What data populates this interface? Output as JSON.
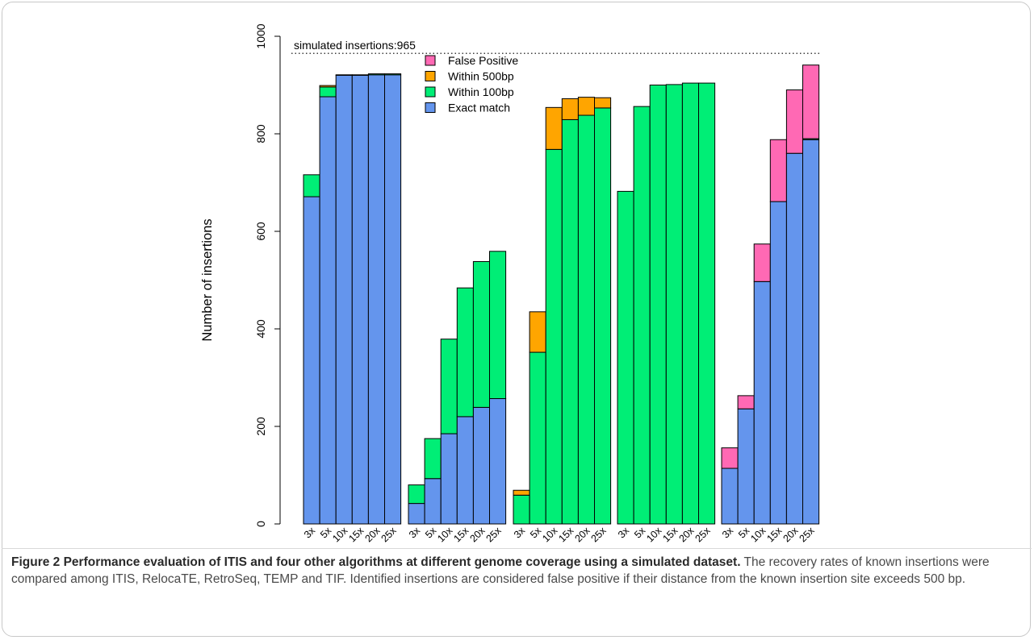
{
  "figure": {
    "caption_title": "Figure 2 Performance evaluation of ITIS and four other algorithms at different genome coverage using a simulated dataset.",
    "caption_body": "The recovery rates of known insertions were compared among ITIS, RelocaTE, RetroSeq, TEMP and TIF. Identified insertions are considered false positive if their distance from the known insertion site exceeds 500 bp."
  },
  "chart_data": {
    "type": "bar",
    "stacked": true,
    "ylabel": "Number of insertions",
    "ylim": [
      0,
      1000
    ],
    "yticks": [
      0,
      200,
      400,
      600,
      800,
      1000
    ],
    "reference_line": {
      "value": 965,
      "label": "simulated insertions:965",
      "style": "dotted"
    },
    "groups": [
      "ITIS",
      "RelocaTE",
      "RetroSeq",
      "TEMP",
      "TIF"
    ],
    "coverages": [
      "3x",
      "5x",
      "10x",
      "15x",
      "20x",
      "25x"
    ],
    "series": [
      {
        "name": "Exact match",
        "color": "#6495ED",
        "values": [
          [
            671,
            876,
            920,
            920,
            921,
            921
          ],
          [
            42,
            93,
            185,
            220,
            239,
            257
          ],
          [
            0,
            0,
            0,
            0,
            0,
            0
          ],
          [
            0,
            0,
            0,
            0,
            0,
            0
          ],
          [
            114,
            236,
            497,
            661,
            760,
            788
          ]
        ]
      },
      {
        "name": "Within 100bp",
        "color": "#00EE76",
        "values": [
          [
            45,
            20,
            1,
            1,
            2,
            2
          ],
          [
            38,
            82,
            194,
            264,
            299,
            302
          ],
          [
            59,
            352,
            768,
            829,
            838,
            853
          ],
          [
            682,
            856,
            900,
            901,
            904,
            904
          ],
          [
            0,
            0,
            0,
            0,
            0,
            2
          ]
        ]
      },
      {
        "name": "Within 500bp",
        "color": "#FFA500",
        "values": [
          [
            0,
            3,
            0,
            0,
            0,
            0
          ],
          [
            0,
            0,
            0,
            0,
            0,
            0
          ],
          [
            10,
            83,
            86,
            43,
            37,
            21
          ],
          [
            0,
            0,
            0,
            0,
            0,
            0
          ],
          [
            0,
            0,
            0,
            0,
            0,
            0
          ]
        ]
      },
      {
        "name": "False Positive",
        "color": "#FF69B4",
        "values": [
          [
            0,
            0,
            0,
            0,
            0,
            0
          ],
          [
            0,
            0,
            0,
            0,
            0,
            0
          ],
          [
            0,
            0,
            0,
            0,
            0,
            0
          ],
          [
            0,
            0,
            0,
            0,
            0,
            0
          ],
          [
            42,
            27,
            77,
            127,
            130,
            151
          ]
        ]
      }
    ],
    "legend": {
      "placement": "top-center",
      "order": [
        "False Positive",
        "Within 500bp",
        "Within 100bp",
        "Exact match"
      ]
    }
  }
}
